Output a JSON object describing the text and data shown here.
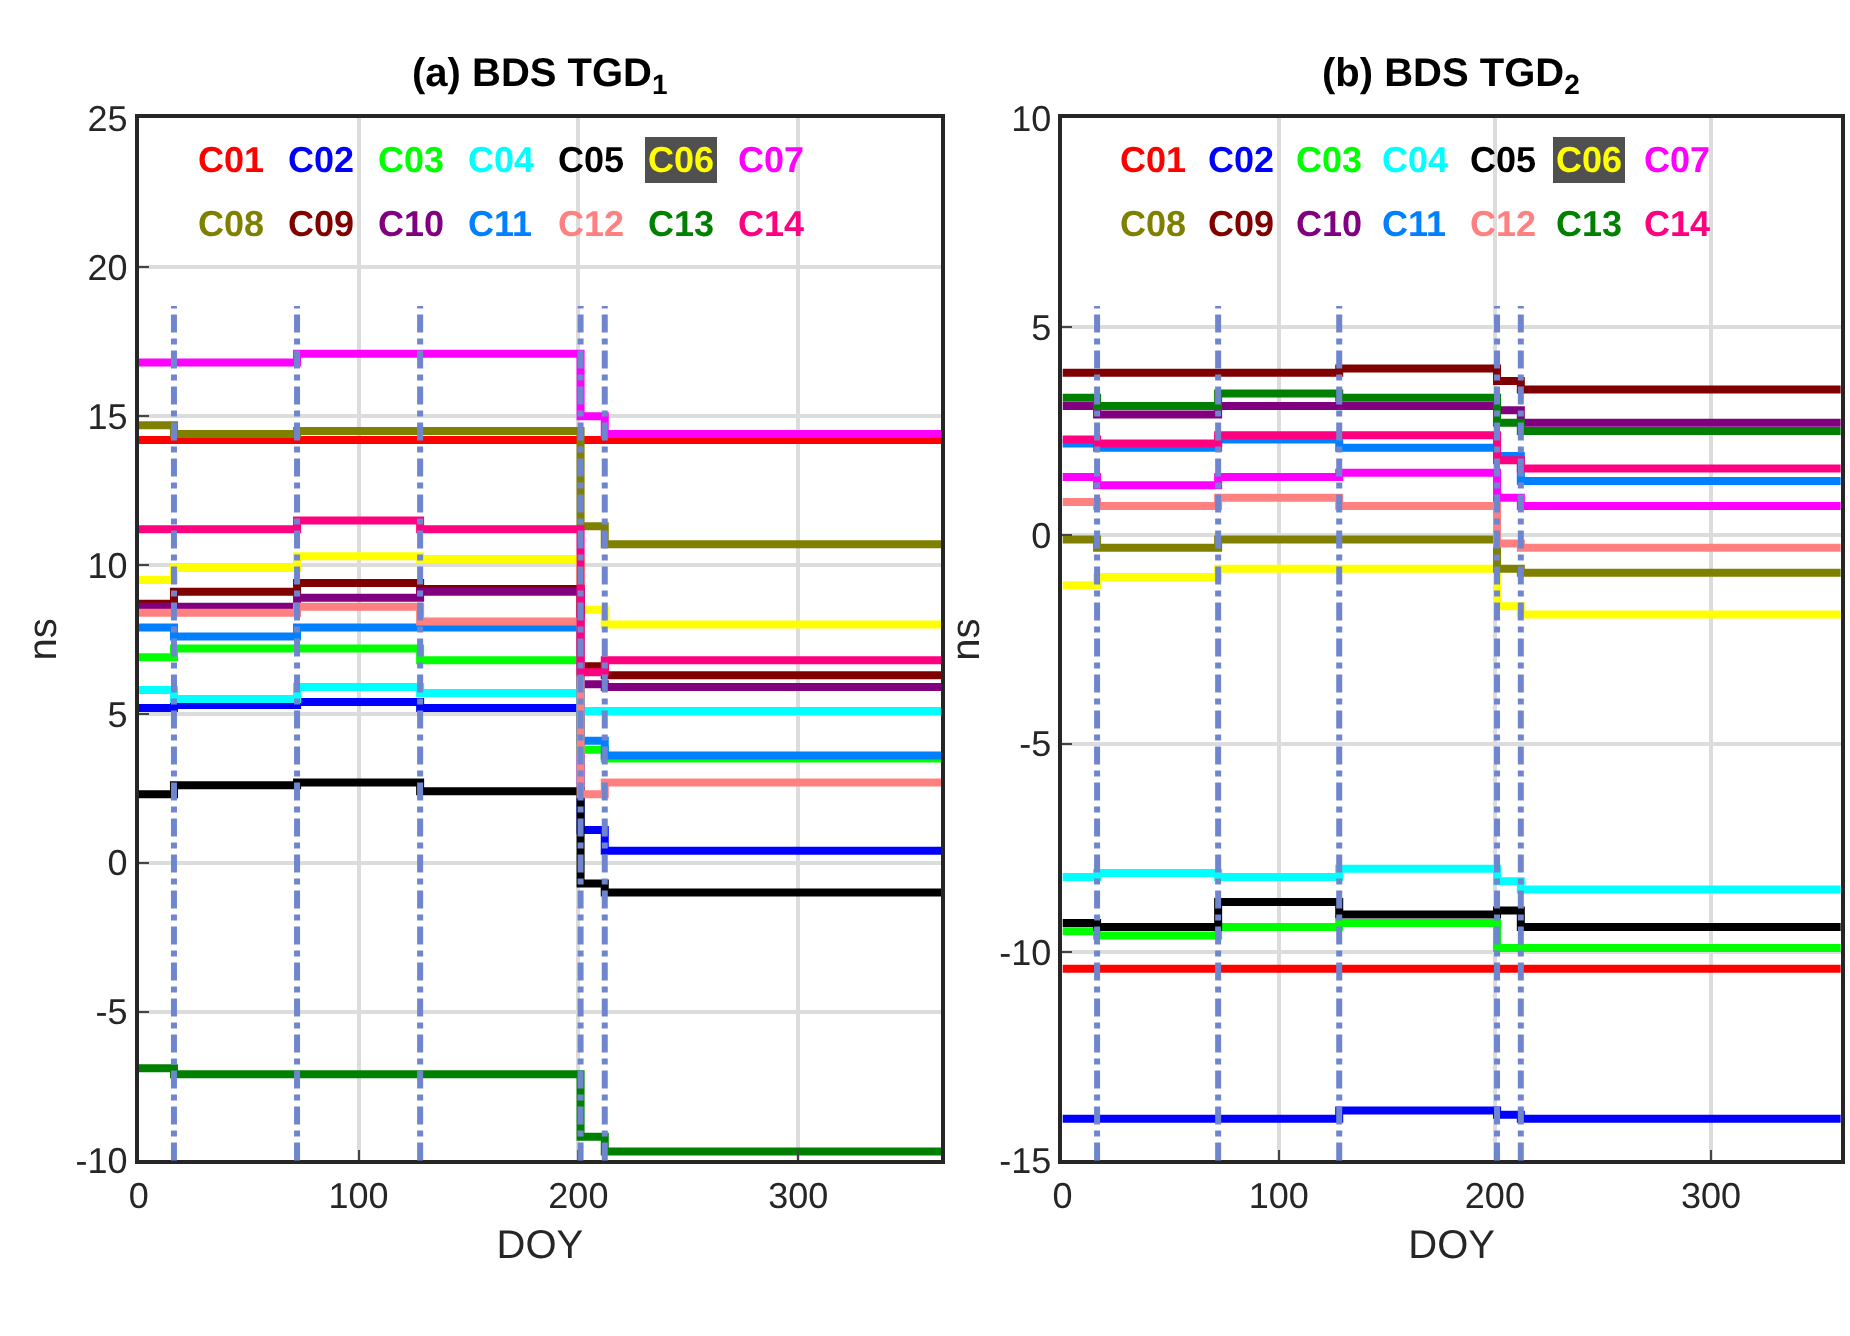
{
  "chart_data": [
    {
      "type": "step",
      "title": "(a) BDS TGD$_{1}$",
      "xlabel": "DOY",
      "ylabel": "ns",
      "x": [
        0,
        16,
        72,
        128,
        201,
        212,
        365
      ],
      "xlim": [
        0,
        365
      ],
      "xticks": [
        0,
        100,
        200,
        300
      ],
      "ylim": [
        -10,
        25
      ],
      "yticks": [
        -10,
        -5,
        0,
        5,
        10,
        15,
        20,
        25
      ],
      "grid": true,
      "legend": "top",
      "marker": "none",
      "line_style": "solid",
      "ref_lines": [
        {
          "axis": "x",
          "value": 16,
          "color": "#6f86cf",
          "line_style": "dashdot"
        },
        {
          "axis": "x",
          "value": 72,
          "color": "#6f86cf",
          "line_style": "dashdot"
        },
        {
          "axis": "x",
          "value": 128,
          "color": "#6f86cf",
          "line_style": "dashdot"
        },
        {
          "axis": "x",
          "value": 201,
          "color": "#6f86cf",
          "line_style": "dashdot"
        },
        {
          "axis": "x",
          "value": 212,
          "color": "#6f86cf",
          "line_style": "dashdot"
        }
      ],
      "series": [
        {
          "name": "C01",
          "color": "#ff0000",
          "values": [
            14.2,
            14.2,
            14.2,
            14.2,
            14.2,
            14.2,
            14.2
          ]
        },
        {
          "name": "C02",
          "color": "#0000ff",
          "values": [
            5.2,
            5.3,
            5.4,
            5.2,
            1.1,
            0.4,
            0.4
          ]
        },
        {
          "name": "C03",
          "color": "#00ff00",
          "values": [
            6.9,
            7.2,
            7.2,
            6.8,
            3.8,
            3.5,
            3.5
          ]
        },
        {
          "name": "C04",
          "color": "#00ffff",
          "values": [
            5.8,
            5.5,
            5.9,
            5.7,
            5.1,
            5.1,
            5.1
          ]
        },
        {
          "name": "C05",
          "color": "#000000",
          "values": [
            2.3,
            2.6,
            2.7,
            2.4,
            -0.7,
            -1.0,
            -1.0
          ]
        },
        {
          "name": "C06",
          "color": "#ffff00",
          "values": [
            9.5,
            9.9,
            10.3,
            10.2,
            8.5,
            8.0,
            8.0
          ]
        },
        {
          "name": "C07",
          "color": "#ff00ff",
          "values": [
            16.8,
            16.8,
            17.1,
            17.1,
            15.0,
            14.4,
            14.4
          ]
        },
        {
          "name": "C08",
          "color": "#808000",
          "values": [
            14.7,
            14.4,
            14.5,
            14.5,
            11.3,
            10.7,
            10.7
          ]
        },
        {
          "name": "C09",
          "color": "#800000",
          "values": [
            8.7,
            9.1,
            9.4,
            9.2,
            6.6,
            6.3,
            6.3
          ]
        },
        {
          "name": "C10",
          "color": "#800080",
          "values": [
            8.6,
            8.6,
            8.9,
            9.1,
            6.0,
            5.9,
            5.9
          ]
        },
        {
          "name": "C11",
          "color": "#0080ff",
          "values": [
            7.9,
            7.6,
            7.9,
            7.9,
            4.1,
            3.6,
            3.6
          ]
        },
        {
          "name": "C12",
          "color": "#ff8080",
          "values": [
            8.4,
            8.4,
            8.6,
            8.1,
            2.3,
            2.7,
            2.7
          ]
        },
        {
          "name": "C13",
          "color": "#008000",
          "values": [
            -6.9,
            -7.1,
            -7.1,
            -7.1,
            -9.2,
            -9.7,
            -9.7
          ]
        },
        {
          "name": "C14",
          "color": "#ff0080",
          "values": [
            11.2,
            11.2,
            11.5,
            11.2,
            6.4,
            6.8,
            6.8
          ]
        }
      ]
    },
    {
      "type": "step",
      "title": "(b) BDS TGD$_{2}$",
      "xlabel": "DOY",
      "ylabel": "ns",
      "x": [
        0,
        16,
        72,
        128,
        201,
        212,
        360
      ],
      "xlim": [
        0,
        360
      ],
      "xticks": [
        0,
        100,
        200,
        300
      ],
      "ylim": [
        -15,
        10
      ],
      "yticks": [
        -15,
        -10,
        -5,
        0,
        5,
        10
      ],
      "grid": true,
      "legend": "top",
      "marker": "none",
      "line_style": "solid",
      "ref_lines": [
        {
          "axis": "x",
          "value": 16,
          "color": "#6f86cf",
          "line_style": "dashdot"
        },
        {
          "axis": "x",
          "value": 72,
          "color": "#6f86cf",
          "line_style": "dashdot"
        },
        {
          "axis": "x",
          "value": 128,
          "color": "#6f86cf",
          "line_style": "dashdot"
        },
        {
          "axis": "x",
          "value": 201,
          "color": "#6f86cf",
          "line_style": "dashdot"
        },
        {
          "axis": "x",
          "value": 212,
          "color": "#6f86cf",
          "line_style": "dashdot"
        }
      ],
      "series": [
        {
          "name": "C01",
          "color": "#ff0000",
          "values": [
            -10.4,
            -10.4,
            -10.4,
            -10.4,
            -10.4,
            -10.4,
            -10.4
          ]
        },
        {
          "name": "C02",
          "color": "#0000ff",
          "values": [
            -14.0,
            -14.0,
            -14.0,
            -13.8,
            -13.9,
            -14.0,
            -14.0
          ]
        },
        {
          "name": "C03",
          "color": "#00ff00",
          "values": [
            -9.5,
            -9.6,
            -9.4,
            -9.3,
            -9.9,
            -9.9,
            -9.9
          ]
        },
        {
          "name": "C04",
          "color": "#00ffff",
          "values": [
            -8.2,
            -8.1,
            -8.2,
            -8.0,
            -8.3,
            -8.5,
            -8.5
          ]
        },
        {
          "name": "C05",
          "color": "#000000",
          "values": [
            -9.3,
            -9.4,
            -8.8,
            -9.1,
            -9.0,
            -9.4,
            -9.4
          ]
        },
        {
          "name": "C06",
          "color": "#ffff00",
          "values": [
            -1.2,
            -1.0,
            -0.8,
            -0.8,
            -1.7,
            -1.9,
            -1.9
          ]
        },
        {
          "name": "C07",
          "color": "#ff00ff",
          "values": [
            1.4,
            1.2,
            1.4,
            1.5,
            0.9,
            0.7,
            0.7
          ]
        },
        {
          "name": "C08",
          "color": "#808000",
          "values": [
            -0.1,
            -0.3,
            -0.1,
            -0.1,
            -0.8,
            -0.9,
            -0.9
          ]
        },
        {
          "name": "C09",
          "color": "#800000",
          "values": [
            3.9,
            3.9,
            3.9,
            4.0,
            3.7,
            3.5,
            3.5
          ]
        },
        {
          "name": "C10",
          "color": "#800080",
          "values": [
            3.1,
            2.9,
            3.1,
            3.1,
            3.0,
            2.7,
            2.7
          ]
        },
        {
          "name": "C11",
          "color": "#0080ff",
          "values": [
            2.2,
            2.1,
            2.3,
            2.1,
            1.9,
            1.3,
            1.3
          ]
        },
        {
          "name": "C12",
          "color": "#ff8080",
          "values": [
            0.8,
            0.7,
            0.9,
            0.7,
            -0.2,
            -0.3,
            -0.3
          ]
        },
        {
          "name": "C13",
          "color": "#008000",
          "values": [
            3.3,
            3.1,
            3.4,
            3.3,
            2.7,
            2.5,
            2.5
          ]
        },
        {
          "name": "C14",
          "color": "#ff0080",
          "values": [
            2.3,
            2.2,
            2.4,
            2.4,
            1.8,
            1.6,
            1.6
          ]
        }
      ]
    }
  ]
}
